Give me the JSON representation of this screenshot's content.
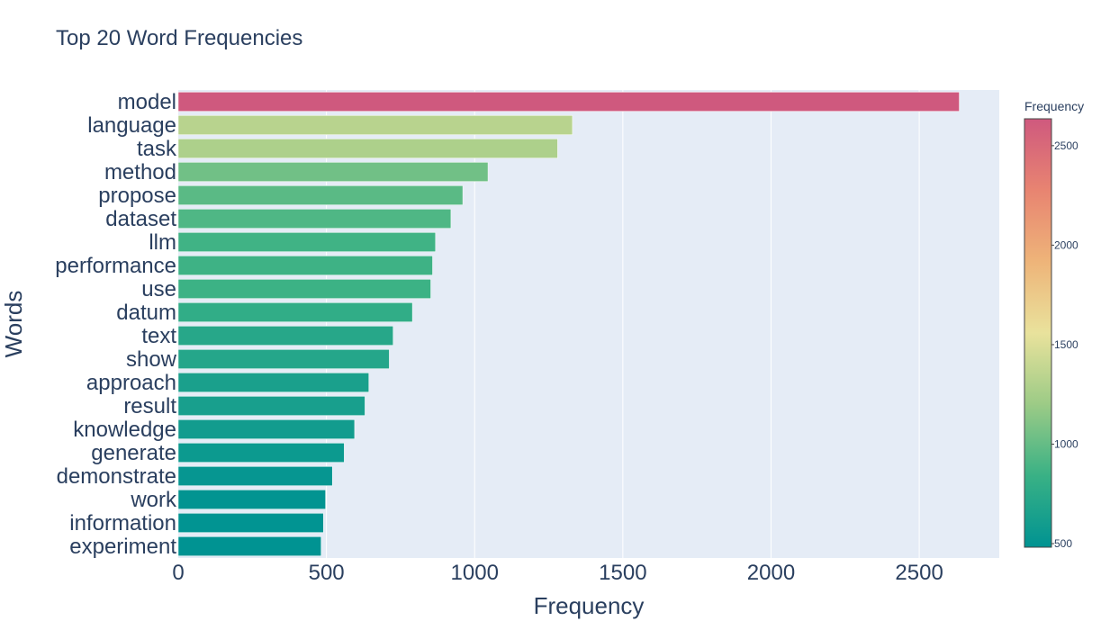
{
  "chart_data": {
    "type": "bar",
    "orientation": "horizontal",
    "title": "Top 20 Word Frequencies",
    "xlabel": "Frequency",
    "ylabel": "Words",
    "xlim": [
      0,
      2770
    ],
    "xticks": [
      0,
      500,
      1000,
      1500,
      2000,
      2500
    ],
    "grid": true,
    "categories": [
      "model",
      "language",
      "task",
      "method",
      "propose",
      "dataset",
      "llm",
      "performance",
      "use",
      "datum",
      "text",
      "show",
      "approach",
      "result",
      "knowledge",
      "generate",
      "demonstrate",
      "work",
      "information",
      "experiment"
    ],
    "values": [
      2635,
      1330,
      1280,
      1045,
      960,
      920,
      868,
      858,
      852,
      790,
      725,
      712,
      643,
      630,
      595,
      560,
      520,
      497,
      490,
      482
    ],
    "colorbar": {
      "title": "Frequency",
      "range": [
        482,
        2635
      ],
      "ticks": [
        500,
        1000,
        1500,
        2000,
        2500
      ],
      "colorscale": [
        "#009B9E",
        "#42B7B9",
        "#A7D3D4",
        "#F1F1F1",
        "#E4C1D9",
        "#D691C1",
        "#C75DAB"
      ],
      "colors": [
        "#009392",
        "#39b185",
        "#9ccb86",
        "#e9e29c",
        "#eeb479",
        "#e88471",
        "#cf597e"
      ]
    }
  }
}
